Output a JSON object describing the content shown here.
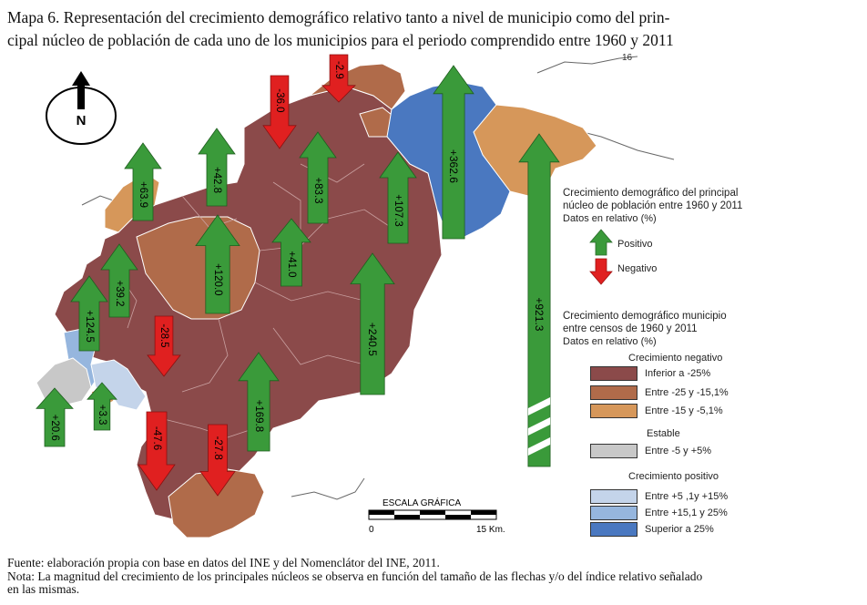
{
  "title": {
    "line1": "Mapa 6. Representación del crecimiento demográfico relativo tanto a nivel de municipio como del prin-",
    "line2": "cipal núcleo de población de cada uno de los municipios  para el periodo comprendido entre 1960 y 2011"
  },
  "compass": {
    "letter": "N",
    "icon": "north-arrow-icon"
  },
  "arrows": [
    {
      "id": "a1",
      "label": "+63.9",
      "direction": "up",
      "color": "#3a9a3a"
    },
    {
      "id": "a2",
      "label": "+42.8",
      "direction": "up",
      "color": "#3a9a3a"
    },
    {
      "id": "a3",
      "label": "-36.0",
      "direction": "down",
      "color": "#e02020"
    },
    {
      "id": "a4",
      "label": "-2.9",
      "direction": "down",
      "color": "#e02020"
    },
    {
      "id": "a5",
      "label": "+83.3",
      "direction": "up",
      "color": "#3a9a3a"
    },
    {
      "id": "a6",
      "label": "+362.6",
      "direction": "up",
      "color": "#3a9a3a"
    },
    {
      "id": "a7",
      "label": "+107.3",
      "direction": "up",
      "color": "#3a9a3a"
    },
    {
      "id": "a8",
      "label": "+921.3",
      "direction": "up",
      "color": "#3a9a3a"
    },
    {
      "id": "a9",
      "label": "+120.0",
      "direction": "up",
      "color": "#3a9a3a"
    },
    {
      "id": "a10",
      "label": "+41.0",
      "direction": "up",
      "color": "#3a9a3a"
    },
    {
      "id": "a11",
      "label": "+39.2",
      "direction": "up",
      "color": "#3a9a3a"
    },
    {
      "id": "a12",
      "label": "+124.5",
      "direction": "up",
      "color": "#3a9a3a"
    },
    {
      "id": "a13",
      "label": "+240.5",
      "direction": "up",
      "color": "#3a9a3a"
    },
    {
      "id": "a14",
      "label": "-28.5",
      "direction": "down",
      "color": "#e02020"
    },
    {
      "id": "a15",
      "label": "+169.8",
      "direction": "up",
      "color": "#3a9a3a"
    },
    {
      "id": "a16",
      "label": "+20.6",
      "direction": "up",
      "color": "#3a9a3a"
    },
    {
      "id": "a17",
      "label": "+3.3",
      "direction": "up",
      "color": "#3a9a3a"
    },
    {
      "id": "a18",
      "label": "-47.6",
      "direction": "down",
      "color": "#e02020"
    },
    {
      "id": "a19",
      "label": "-27.8",
      "direction": "down",
      "color": "#e02020"
    }
  ],
  "stray_label": "16",
  "legend_core": {
    "title_l1": "Crecimiento demográfico del principal",
    "title_l2": "núcleo de población entre 1960 y 2011",
    "sub": "Datos en relativo (%)",
    "positive": "Positivo",
    "negative": "Negativo"
  },
  "legend_muni": {
    "title_l1": "Crecimiento demográfico municipio",
    "title_l2": "entre censos de 1960 y 2011",
    "sub": "Datos en relativo (%)",
    "neg_title": "Crecimiento negativo",
    "stable_title": "Estable",
    "pos_title": "Crecimiento positivo",
    "classes": [
      {
        "label": "Inferior a -25%",
        "color": "#8b4a4a"
      },
      {
        "label": "Entre -25 y -15,1%",
        "color": "#b06b4a"
      },
      {
        "label": "Entre -15 y -5,1%",
        "color": "#d6975a"
      },
      {
        "label": "Entre -5 y +5%",
        "color": "#c8c8c8"
      },
      {
        "label": "Entre +5 ,1y +15%",
        "color": "#c4d4ea"
      },
      {
        "label": "Entre +15,1 y 25%",
        "color": "#96b6de"
      },
      {
        "label": "Superior a 25%",
        "color": "#4a78c0"
      }
    ]
  },
  "scale": {
    "title": "ESCALA GRÁFICA",
    "start": "0",
    "end": "15 Km."
  },
  "footer": {
    "line1": "Fuente: elaboración propia con base en datos del INE y del Nomenclátor del INE, 2011.",
    "line2": "Nota: La magnitud del crecimiento de los principales núcleos se observa en función del tamaño de las flechas y/o del índice relativo señalado",
    "line3": "en las mismas."
  }
}
